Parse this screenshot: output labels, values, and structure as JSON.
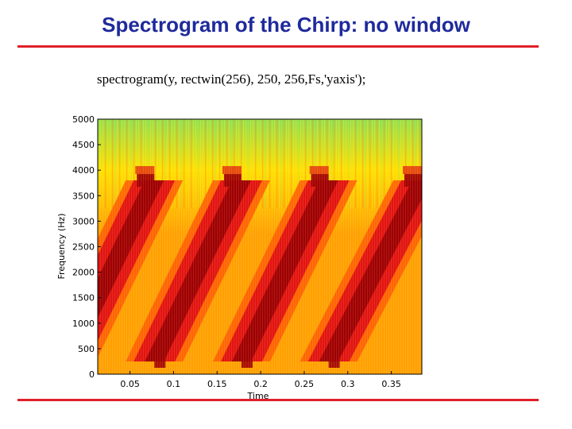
{
  "slide": {
    "title": "Spectrogram of the Chirp: no window",
    "command": "spectrogram(y, rectwin(256), 250, 256,Fs,'yaxis');",
    "title_color": "#1f2a9c",
    "rule_color": "#e0202a"
  },
  "chart_data": {
    "type": "heatmap",
    "xlabel": "Time",
    "ylabel": "Frequency (Hz)",
    "xlim": [
      0.013,
      0.385
    ],
    "ylim": [
      0,
      5000
    ],
    "xticks": [
      0.05,
      0.1,
      0.15,
      0.2,
      0.25,
      0.3,
      0.35
    ],
    "xtick_labels": [
      "0.05",
      "0.1",
      "0.15",
      "0.2",
      "0.25",
      "0.3",
      "0.35"
    ],
    "yticks": [
      0,
      500,
      1000,
      1500,
      2000,
      2500,
      3000,
      3500,
      4000,
      4500,
      5000
    ],
    "ytick_labels": [
      "0",
      "500",
      "1000",
      "1500",
      "2000",
      "2500",
      "3000",
      "3500",
      "4000",
      "4500",
      "5000"
    ],
    "chirp_segments": [
      {
        "t_start": 0.013,
        "t_end": 0.078,
        "f_start": 250,
        "f_end": 3800
      },
      {
        "t_start": 0.078,
        "t_end": 0.178,
        "f_start": 250,
        "f_end": 3800
      },
      {
        "t_start": 0.178,
        "t_end": 0.278,
        "f_start": 250,
        "f_end": 3800
      },
      {
        "t_start": 0.278,
        "t_end": 0.385,
        "f_start": 250,
        "f_end": 3800
      }
    ],
    "colormap": [
      "#a00000",
      "#e01010",
      "#ff5a00",
      "#ffa000",
      "#ffe000",
      "#90e050",
      "#30c8b0"
    ],
    "grid": false,
    "legend": "none"
  }
}
